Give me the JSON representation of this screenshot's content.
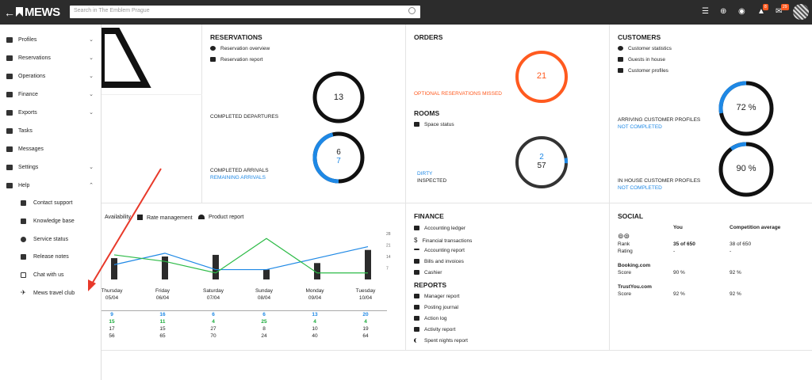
{
  "topbar": {
    "logo": "MEWS",
    "search_placeholder": "Search in The Emblem Prague",
    "notif_badge_1": "8",
    "notif_badge_2": "29"
  },
  "sidebar": {
    "items": [
      {
        "label": "Profiles",
        "icon": "people-icon",
        "chevron": "⌄"
      },
      {
        "label": "Reservations",
        "icon": "layers-icon",
        "chevron": "⌄"
      },
      {
        "label": "Operations",
        "icon": "keyboard-icon",
        "chevron": "⌄"
      },
      {
        "label": "Finance",
        "icon": "dollar-icon",
        "chevron": "⌄"
      },
      {
        "label": "Exports",
        "icon": "export-icon",
        "chevron": "⌄"
      },
      {
        "label": "Tasks",
        "icon": "tasks-icon",
        "chevron": ""
      },
      {
        "label": "Messages",
        "icon": "mail-icon",
        "chevron": ""
      },
      {
        "label": "Settings",
        "icon": "gear-icon",
        "chevron": "⌄"
      },
      {
        "label": "Help",
        "icon": "help-icon",
        "chevron": "⌃"
      }
    ],
    "help_items": [
      {
        "label": "Contact support",
        "icon": "chat-icon"
      },
      {
        "label": "Knowledge base",
        "icon": "book-icon"
      },
      {
        "label": "Service status",
        "icon": "status-icon"
      },
      {
        "label": "Release notes",
        "icon": "notes-icon"
      },
      {
        "label": "Chat with us",
        "icon": "chat-bubble-icon"
      },
      {
        "label": "Mews travel club",
        "icon": "plane-icon"
      }
    ]
  },
  "reservations": {
    "title": "RESERVATIONS",
    "link1": "Reservation overview",
    "link2": "Reservation report",
    "departures_label": "COMPLETED DEPARTURES",
    "departures_value": "13",
    "arrivals_label": "COMPLETED ARRIVALS",
    "remaining_label": "REMAINING ARRIVALS",
    "arrivals_value": "6",
    "remaining_value": "7",
    "arrivals_fraction": 0.46
  },
  "orders": {
    "title": "ORDERS",
    "missed_label": "OPTIONAL RESERVATIONS MISSED",
    "missed_value": "21"
  },
  "rooms": {
    "title": "ROOMS",
    "link": "Space status",
    "dirty_label": "DIRTY",
    "inspected_label": "INSPECTED",
    "dirty_value": "2",
    "inspected_value": "57",
    "dirty_fraction": 0.034
  },
  "customers": {
    "title": "CUSTOMERS",
    "link1": "Customer statistics",
    "link2": "Guests in house",
    "link3": "Customer profiles",
    "arriving_label": "ARRIVING CUSTOMER PROFILES",
    "arriving_sub": "NOT COMPLETED",
    "arriving_value": "72 %",
    "arriving_fraction": 0.72,
    "inhouse_label": "IN HOUSE CUSTOMER PROFILES",
    "inhouse_sub": "NOT COMPLETED",
    "inhouse_value": "90 %",
    "inhouse_fraction": 0.9
  },
  "forecast": {
    "tabs": [
      "Availability",
      "Rate management",
      "Product report"
    ],
    "yticks": [
      "28",
      "21",
      "14",
      "7"
    ],
    "days": [
      {
        "day": "Thursday",
        "date": "05/04",
        "v1": "9",
        "v2": "15",
        "v3": "17",
        "v4": "56"
      },
      {
        "day": "Friday",
        "date": "06/04",
        "v1": "16",
        "v2": "11",
        "v3": "15",
        "v4": "65"
      },
      {
        "day": "Saturday",
        "date": "07/04",
        "v1": "6",
        "v2": "4",
        "v3": "27",
        "v4": "70"
      },
      {
        "day": "Sunday",
        "date": "08/04",
        "v1": "6",
        "v2": "25",
        "v3": "8",
        "v4": "24"
      },
      {
        "day": "Monday",
        "date": "09/04",
        "v1": "13",
        "v2": "4",
        "v3": "10",
        "v4": "40"
      },
      {
        "day": "Tuesday",
        "date": "10/04",
        "v1": "20",
        "v2": "4",
        "v3": "19",
        "v4": "64"
      }
    ]
  },
  "chart_data": {
    "type": "bar",
    "categories": [
      "05/04",
      "06/04",
      "07/04",
      "08/04",
      "09/04",
      "10/04"
    ],
    "ylim": [
      0,
      28
    ],
    "series": [
      {
        "values": [
          13,
          14,
          15,
          6,
          10,
          18
        ]
      },
      {
        "values": [
          9,
          16,
          6,
          6,
          13,
          20
        ]
      },
      {
        "values": [
          15,
          11,
          4,
          25,
          4,
          4
        ]
      }
    ]
  },
  "finance": {
    "title": "FINANCE",
    "links": [
      "Accounting ledger",
      "Financial transactions",
      "Accounting report",
      "Bills and invoices",
      "Cashier"
    ]
  },
  "reports": {
    "title": "REPORTS",
    "links": [
      "Manager report",
      "Posting journal",
      "Action log",
      "Activity report",
      "Spent nights report"
    ]
  },
  "social": {
    "title": "SOCIAL",
    "col_you": "You",
    "col_comp": "Competition average",
    "rank_label": "Rank",
    "rank_you": "35 of 650",
    "rank_comp": "38 of 650",
    "rating_label": "Rating",
    "rating_you": "-",
    "rating_comp": "-",
    "booking": "Booking.com",
    "score_label": "Score",
    "booking_you": "90 %",
    "booking_comp": "92 %",
    "trustyou": "TrustYou.com",
    "trust_you": "92 %",
    "trust_comp": "92 %"
  }
}
